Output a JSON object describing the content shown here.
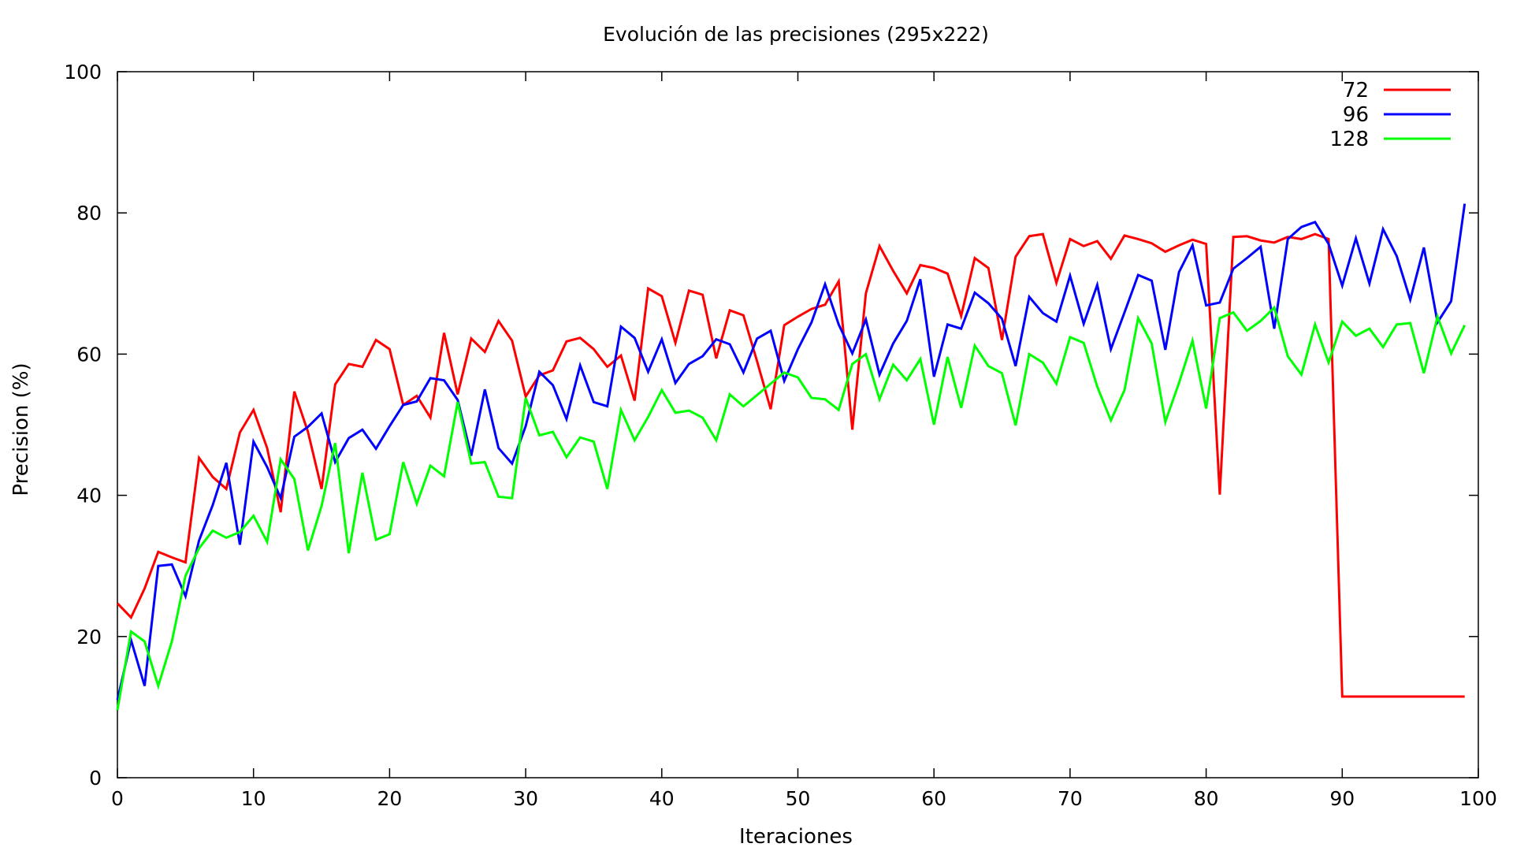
{
  "chart_data": {
    "type": "line",
    "title": "Evolución de las precisiones (295x222)",
    "xlabel": "Iteraciones",
    "ylabel": "Precision (%)",
    "xlim": [
      0,
      100
    ],
    "ylim": [
      0,
      100
    ],
    "xticks": [
      0,
      10,
      20,
      30,
      40,
      50,
      60,
      70,
      80,
      90,
      100
    ],
    "yticks": [
      0,
      20,
      40,
      60,
      80,
      100
    ],
    "legend_position": "top-right",
    "grid": false,
    "series": [
      {
        "name": "72",
        "color": "#ff0000",
        "values": [
          24.7,
          22.7,
          26.8,
          32.0,
          31.2,
          30.5,
          45.3,
          42.6,
          40.9,
          48.9,
          52.1,
          46.7,
          37.6,
          54.7,
          49.0,
          40.9,
          55.7,
          58.6,
          58.2,
          62.0,
          60.7,
          52.8,
          54.1,
          51.0,
          63.0,
          54.3,
          62.2,
          60.3,
          64.7,
          61.9,
          54.0,
          57.0,
          57.7,
          61.8,
          62.3,
          60.7,
          58.2,
          59.8,
          53.4,
          69.3,
          68.2,
          61.6,
          69.0,
          68.4,
          59.4,
          66.2,
          65.5,
          59.0,
          52.2,
          64.1,
          65.3,
          66.4,
          67.0,
          70.3,
          49.3,
          68.6,
          75.3,
          71.8,
          68.6,
          72.6,
          72.2,
          71.4,
          65.4,
          73.6,
          72.2,
          62.0,
          73.8,
          76.7,
          77.0,
          70.1,
          76.3,
          75.3,
          76.0,
          73.5,
          76.8,
          76.3,
          75.7,
          74.5,
          75.4,
          76.2,
          75.6,
          40.1,
          76.6,
          76.7,
          76.1,
          75.8,
          76.6,
          76.3,
          77.0,
          76.3,
          11.5,
          11.5,
          11.5,
          11.5,
          11.5,
          11.5,
          11.5,
          11.5,
          11.5,
          11.5
        ]
      },
      {
        "name": "96",
        "color": "#0000ff",
        "values": [
          11.0,
          19.5,
          13.0,
          30.0,
          30.2,
          25.7,
          33.6,
          38.6,
          44.6,
          33.0,
          47.6,
          44.0,
          39.6,
          48.3,
          49.7,
          51.6,
          44.7,
          48.1,
          49.3,
          46.6,
          49.8,
          52.8,
          53.3,
          56.6,
          56.3,
          53.5,
          45.6,
          55.0,
          46.7,
          44.5,
          49.8,
          57.5,
          55.6,
          50.8,
          58.4,
          53.2,
          52.6,
          63.9,
          62.3,
          57.5,
          62.1,
          55.9,
          58.6,
          59.7,
          62.1,
          61.4,
          57.4,
          62.2,
          63.3,
          56.2,
          60.7,
          64.5,
          69.9,
          64.2,
          60.1,
          64.9,
          57.1,
          61.5,
          64.7,
          70.6,
          56.8,
          64.2,
          63.6,
          68.7,
          67.2,
          65.0,
          58.3,
          68.1,
          65.8,
          64.6,
          71.1,
          64.3,
          69.8,
          60.7,
          65.9,
          71.2,
          70.4,
          60.6,
          71.6,
          75.4,
          66.9,
          67.3,
          72.1,
          73.6,
          75.2,
          63.6,
          76.3,
          78.0,
          78.7,
          75.6,
          69.7,
          76.4,
          70.0,
          77.7,
          73.9,
          67.7,
          75.1,
          64.5,
          67.5,
          81.3
        ]
      },
      {
        "name": "128",
        "color": "#00ff00",
        "values": [
          9.6,
          20.7,
          19.3,
          13.0,
          19.3,
          28.6,
          32.5,
          35.0,
          34.0,
          34.8,
          37.1,
          33.4,
          45.1,
          42.3,
          32.2,
          38.5,
          47.4,
          31.8,
          43.2,
          33.7,
          34.5,
          44.7,
          38.8,
          44.2,
          42.7,
          53.2,
          44.5,
          44.7,
          39.8,
          39.6,
          53.8,
          48.5,
          49.0,
          45.4,
          48.2,
          47.6,
          40.9,
          52.1,
          47.8,
          51.1,
          54.9,
          51.7,
          52.0,
          51.0,
          47.8,
          54.3,
          52.6,
          54.2,
          55.8,
          57.4,
          56.7,
          53.8,
          53.6,
          52.1,
          58.6,
          60.0,
          53.6,
          58.5,
          56.3,
          59.3,
          50.0,
          59.6,
          52.4,
          61.2,
          58.3,
          57.3,
          49.9,
          60.0,
          58.8,
          55.8,
          62.4,
          61.6,
          55.4,
          50.6,
          54.9,
          65.1,
          61.5,
          50.4,
          55.9,
          61.9,
          52.3,
          65.1,
          65.9,
          63.3,
          64.7,
          66.6,
          59.7,
          57.1,
          64.2,
          58.8,
          64.6,
          62.6,
          63.6,
          61.0,
          64.2,
          64.4,
          57.3,
          65.3,
          60.1,
          64.1
        ]
      }
    ]
  }
}
